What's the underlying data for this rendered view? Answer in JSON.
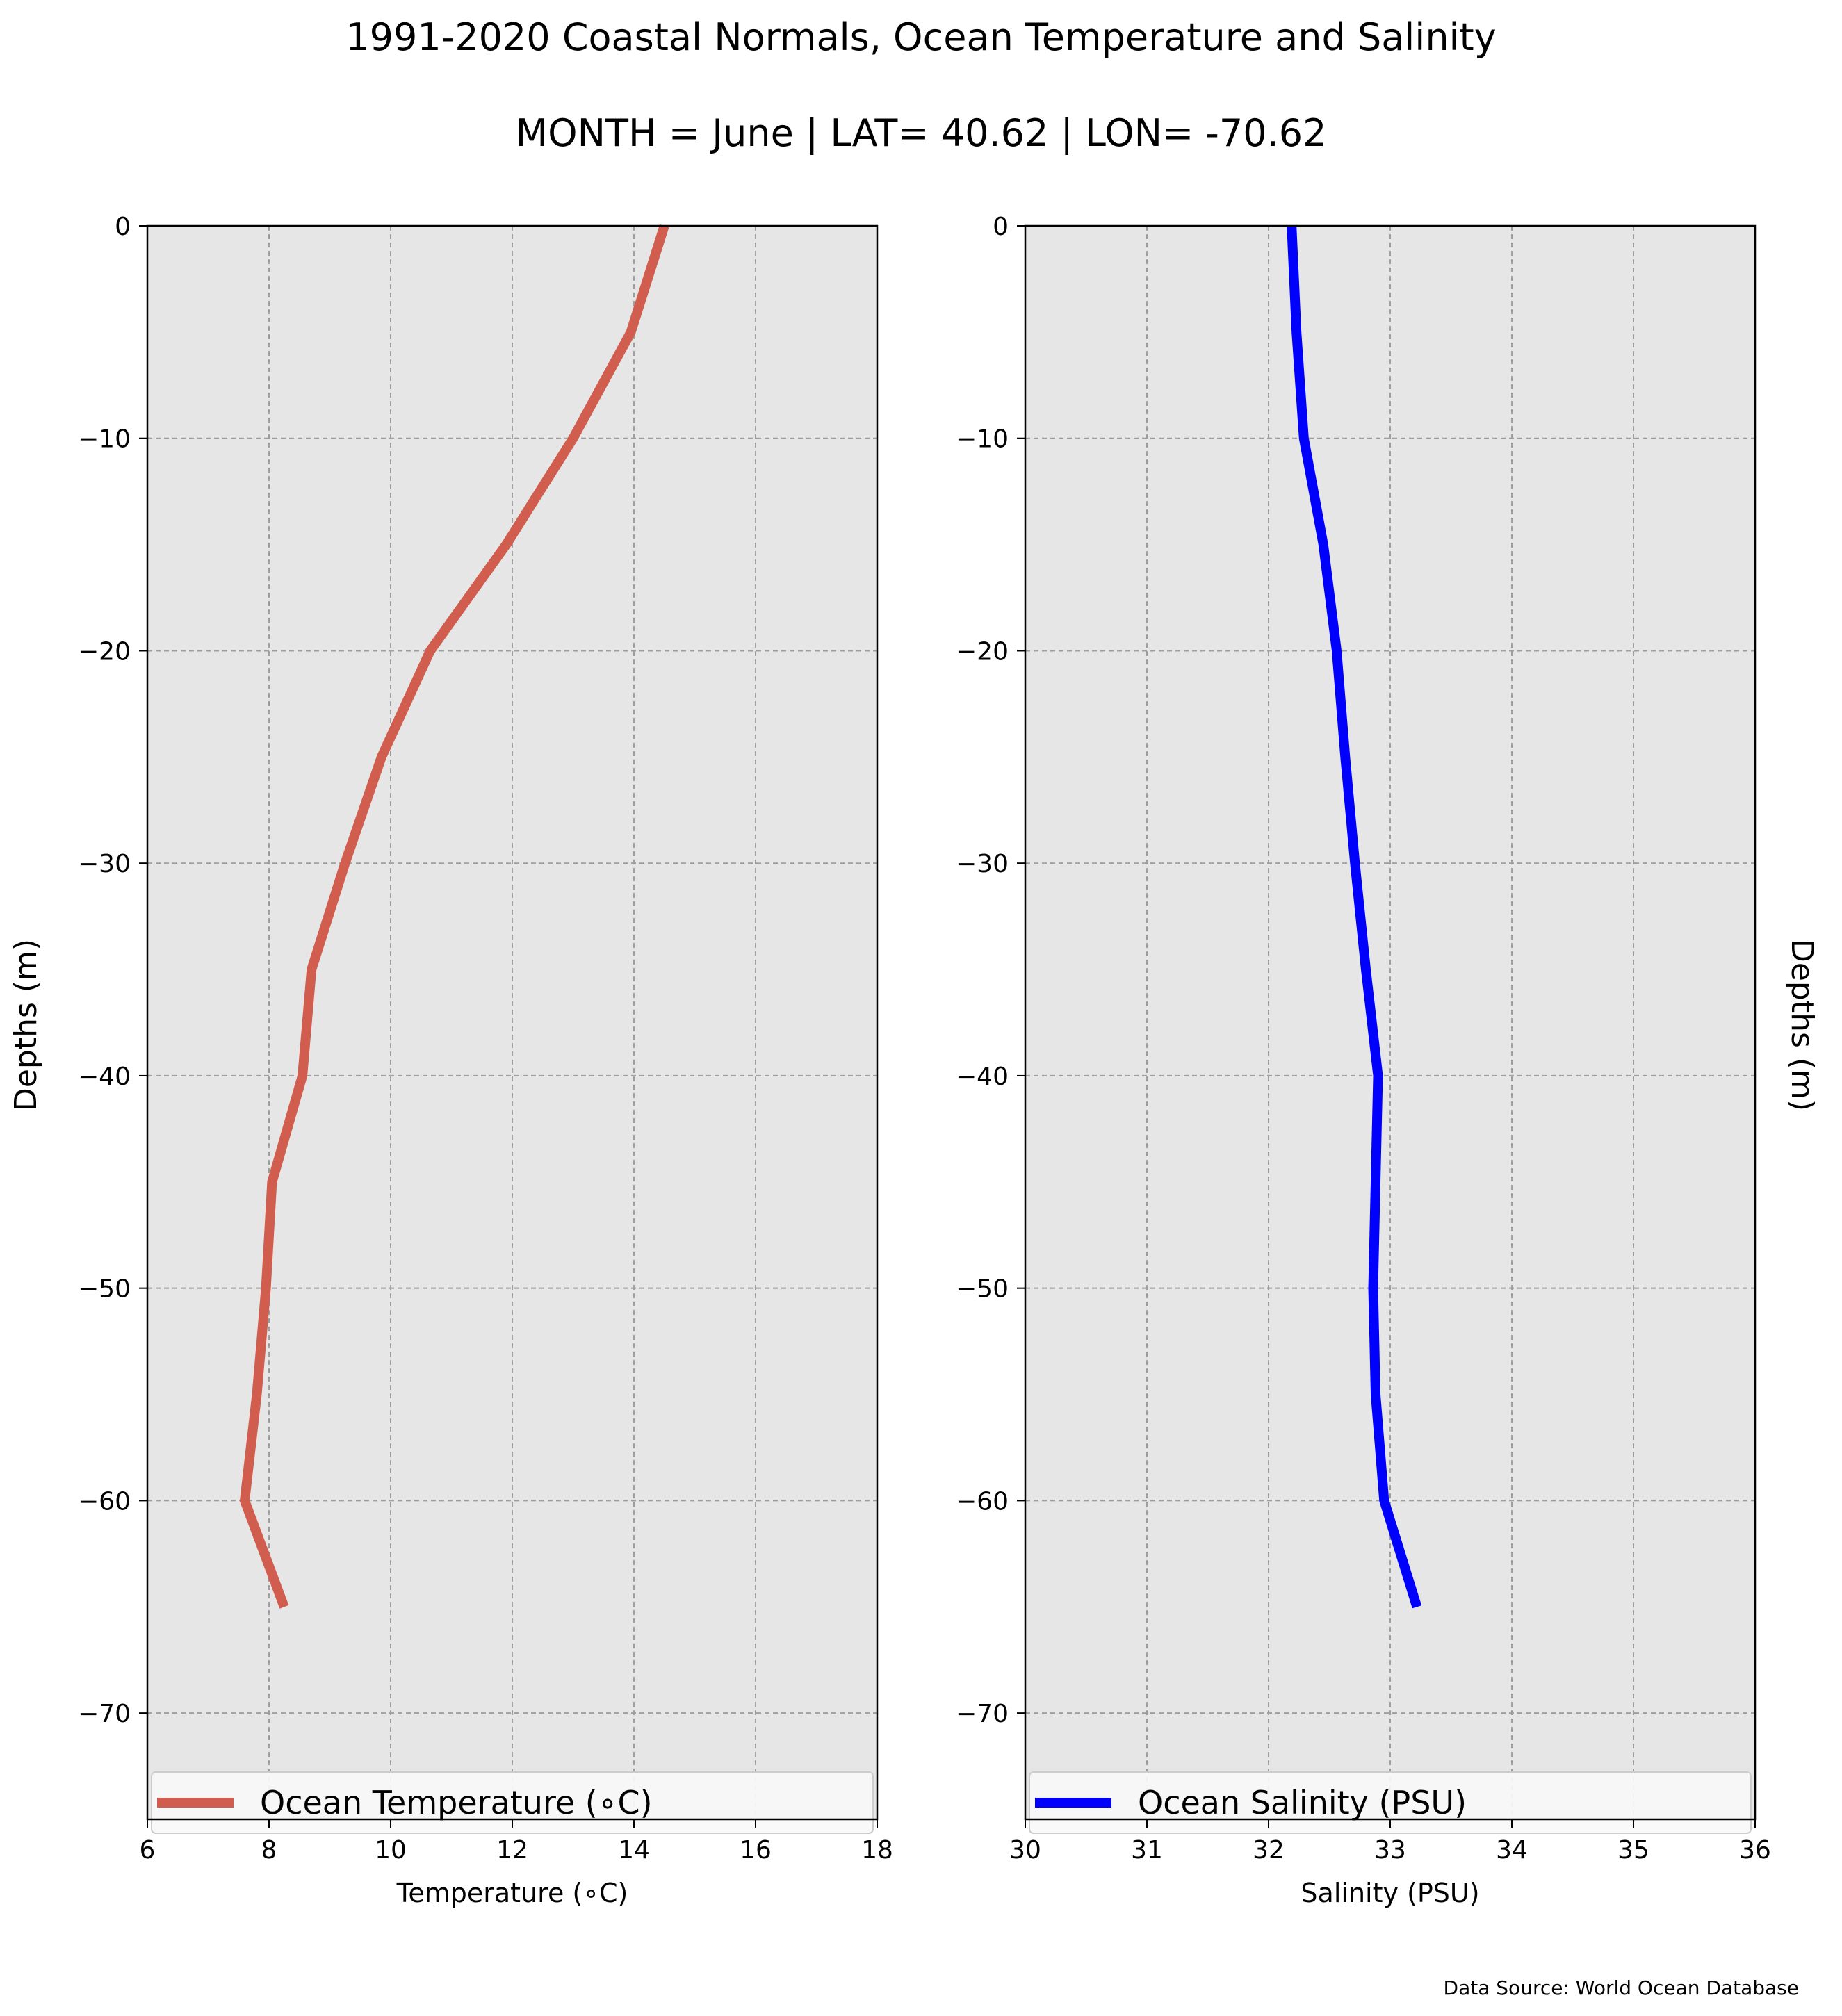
{
  "figure": {
    "title": "1991-2020 Coastal Normals, Ocean Temperature and Salinity",
    "subtitle": "MONTH = June | LAT= 40.62 | LON= -70.62",
    "source_note": "Data Source: World Ocean Database"
  },
  "colors": {
    "panel_background": "#e6e6e6",
    "grid": "#9e9e9e",
    "temperature_line": "#d05d4e",
    "salinity_line": "#0000ff",
    "legend_background": "#f9f9f9"
  },
  "chart_data": [
    {
      "type": "line",
      "xlabel": "Temperature (∘C)",
      "ylabel": "Depths (m)",
      "xlim": [
        6,
        18
      ],
      "ylim": [
        -75,
        0
      ],
      "x_ticks": [
        6,
        8,
        10,
        12,
        14,
        16,
        18
      ],
      "y_ticks": [
        0,
        -10,
        -20,
        -30,
        -40,
        -50,
        -60,
        -70
      ],
      "grid": true,
      "legend_placement": "bottom",
      "series": [
        {
          "name": "Ocean Temperature (∘C)",
          "x": [
            14.5,
            13.95,
            13.0,
            11.9,
            10.65,
            9.85,
            9.25,
            8.7,
            8.55,
            8.05,
            7.95,
            7.8,
            7.6,
            8.25
          ],
          "y": [
            0,
            -5,
            -10,
            -15,
            -20,
            -25,
            -30,
            -35,
            -40,
            -45,
            -50,
            -55,
            -60,
            -65
          ]
        }
      ]
    },
    {
      "type": "line",
      "xlabel": "Salinity (PSU)",
      "ylabel": "Depths (m)",
      "xlim": [
        30,
        36
      ],
      "ylim": [
        -75,
        0
      ],
      "x_ticks": [
        30,
        31,
        32,
        33,
        34,
        35,
        36
      ],
      "y_ticks": [
        0,
        -10,
        -20,
        -30,
        -40,
        -50,
        -60,
        -70
      ],
      "grid": true,
      "legend_placement": "bottom",
      "series": [
        {
          "name": "Ocean Salinity (PSU)",
          "x": [
            32.19,
            32.23,
            32.29,
            32.45,
            32.56,
            32.63,
            32.71,
            32.8,
            32.9,
            32.88,
            32.86,
            32.88,
            32.95,
            33.22
          ],
          "y": [
            0,
            -5,
            -10,
            -15,
            -20,
            -25,
            -30,
            -35,
            -40,
            -45,
            -50,
            -55,
            -60,
            -65
          ]
        }
      ]
    }
  ]
}
